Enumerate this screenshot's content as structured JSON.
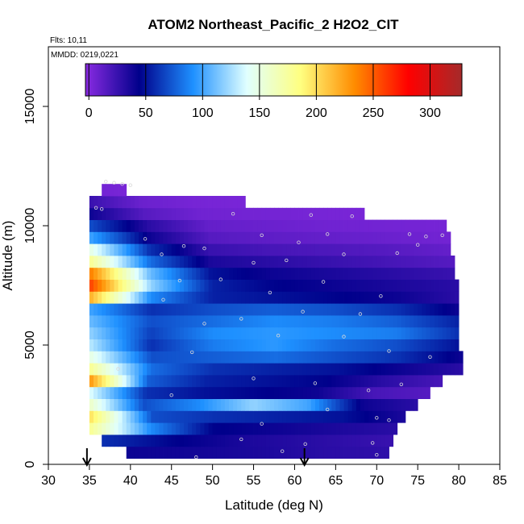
{
  "chart_data": {
    "type": "heatmap",
    "title": "ATOM2 Northeast_Pacific_2 H2O2_CIT",
    "flights_label": "Flts: 10,11",
    "mmdd_label": "MMDD: 0219,0221",
    "xlabel": "Latitude (deg N)",
    "ylabel": "Altitude (m)",
    "xlim": [
      30,
      85
    ],
    "ylim": [
      0,
      17500
    ],
    "x_ticks": [
      "30",
      "35",
      "40",
      "45",
      "50",
      "55",
      "60",
      "65",
      "70",
      "75",
      "80",
      "85"
    ],
    "y_ticks": [
      "0",
      "5000",
      "10000",
      "15000"
    ],
    "colorbar": {
      "range": [
        -3,
        328
      ],
      "ticks": [
        "0",
        "50",
        "100",
        "150",
        "200",
        "250",
        "300"
      ],
      "colors": [
        "#8a2be2",
        "#00008b",
        "#1e90ff",
        "#e0ffff",
        "#ffff80",
        "#ff8c00",
        "#ff0000",
        "#a52a2a"
      ]
    },
    "arrows_latitude": [
      34.7,
      61.2
    ],
    "altitude_bins": [
      {
        "alt": 500,
        "lat": [
          39.5,
          71.5
        ],
        "values": [
          40,
          38,
          35,
          30,
          28
        ]
      },
      {
        "alt": 1000,
        "lat": [
          36.5,
          72.0
        ],
        "values": [
          60,
          45,
          35,
          30,
          25
        ]
      },
      {
        "alt": 1500,
        "lat": [
          35.0,
          72.5
        ],
        "values": [
          180,
          90,
          45,
          40,
          35,
          30
        ]
      },
      {
        "alt": 2000,
        "lat": [
          35.0,
          73.5
        ],
        "values": [
          200,
          70,
          60,
          55,
          50,
          35
        ]
      },
      {
        "alt": 2500,
        "lat": [
          35.0,
          75.0
        ],
        "values": [
          160,
          70,
          90,
          120,
          100,
          40,
          30
        ]
      },
      {
        "alt": 3000,
        "lat": [
          35.0,
          76.5
        ],
        "values": [
          140,
          60,
          50,
          45,
          40,
          20,
          15
        ]
      },
      {
        "alt": 3500,
        "lat": [
          35.0,
          78.0
        ],
        "values": [
          230,
          75,
          55,
          50,
          45,
          30,
          20
        ]
      },
      {
        "alt": 4000,
        "lat": [
          35.0,
          80.5
        ],
        "values": [
          180,
          80,
          60,
          55,
          50,
          40,
          30
        ]
      },
      {
        "alt": 4500,
        "lat": [
          35.0,
          80.5
        ],
        "values": [
          150,
          70,
          75,
          80,
          70,
          60,
          40
        ]
      },
      {
        "alt": 5000,
        "lat": [
          35.0,
          80.0
        ],
        "values": [
          130,
          60,
          85,
          95,
          80,
          70,
          50
        ]
      },
      {
        "alt": 5500,
        "lat": [
          35.0,
          80.0
        ],
        "values": [
          120,
          65,
          90,
          95,
          90,
          85,
          60
        ]
      },
      {
        "alt": 6000,
        "lat": [
          35.0,
          80.0
        ],
        "values": [
          110,
          70,
          80,
          90,
          85,
          75,
          55
        ]
      },
      {
        "alt": 6500,
        "lat": [
          35.0,
          80.0
        ],
        "values": [
          100,
          60,
          70,
          75,
          70,
          60,
          40
        ]
      },
      {
        "alt": 7000,
        "lat": [
          35.0,
          80.0
        ],
        "values": [
          220,
          90,
          55,
          50,
          45,
          40,
          30
        ]
      },
      {
        "alt": 7500,
        "lat": [
          35.0,
          80.0
        ],
        "values": [
          260,
          120,
          55,
          45,
          40,
          35,
          30
        ]
      },
      {
        "alt": 8000,
        "lat": [
          35.0,
          79.5
        ],
        "values": [
          240,
          110,
          50,
          40,
          35,
          30,
          25
        ]
      },
      {
        "alt": 8500,
        "lat": [
          35.0,
          79.5
        ],
        "values": [
          180,
          80,
          35,
          30,
          25,
          20,
          15
        ]
      },
      {
        "alt": 9000,
        "lat": [
          35.0,
          79.0
        ],
        "values": [
          150,
          60,
          25,
          20,
          18,
          15,
          10
        ]
      },
      {
        "alt": 9500,
        "lat": [
          35.0,
          79.0
        ],
        "values": [
          100,
          40,
          15,
          12,
          10,
          8,
          5
        ]
      },
      {
        "alt": 10000,
        "lat": [
          35.0,
          78.5
        ],
        "values": [
          70,
          30,
          10,
          8,
          6,
          5,
          4
        ]
      },
      {
        "alt": 10500,
        "lat": [
          35.0,
          68.5
        ],
        "values": [
          40,
          15,
          6,
          5,
          4,
          3
        ]
      },
      {
        "alt": 11000,
        "lat": [
          35.0,
          54.0
        ],
        "values": [
          25,
          8,
          4,
          3
        ]
      },
      {
        "alt": 11500,
        "lat": [
          36.5,
          39.5
        ],
        "values": [
          5,
          3
        ]
      }
    ],
    "sample_points": [
      [
        37.0,
        11850
      ],
      [
        38.0,
        11800
      ],
      [
        39.0,
        11750
      ],
      [
        40.0,
        11700
      ],
      [
        35.8,
        10750
      ],
      [
        36.5,
        10700
      ],
      [
        52.5,
        10500
      ],
      [
        62.0,
        10450
      ],
      [
        67.0,
        10400
      ],
      [
        41.8,
        9450
      ],
      [
        56.0,
        9600
      ],
      [
        64.0,
        9650
      ],
      [
        74.0,
        9650
      ],
      [
        78.0,
        9600
      ],
      [
        46.5,
        9150
      ],
      [
        60.5,
        9300
      ],
      [
        76.0,
        9550
      ],
      [
        49.0,
        9050
      ],
      [
        75.0,
        9200
      ],
      [
        43.8,
        8800
      ],
      [
        59.0,
        8550
      ],
      [
        72.5,
        8850
      ],
      [
        66.0,
        8800
      ],
      [
        55.0,
        8450
      ],
      [
        63.5,
        7650
      ],
      [
        51.0,
        7750
      ],
      [
        46.0,
        7700
      ],
      [
        70.5,
        7050
      ],
      [
        57.0,
        7200
      ],
      [
        44.0,
        6900
      ],
      [
        61.0,
        6400
      ],
      [
        68.0,
        6300
      ],
      [
        53.5,
        6100
      ],
      [
        49.0,
        5900
      ],
      [
        66.0,
        5350
      ],
      [
        58.0,
        5400
      ],
      [
        47.5,
        4700
      ],
      [
        71.5,
        4750
      ],
      [
        76.5,
        4500
      ],
      [
        38.5,
        4000
      ],
      [
        55.0,
        3600
      ],
      [
        62.5,
        3400
      ],
      [
        69.0,
        3100
      ],
      [
        73.0,
        3350
      ],
      [
        45.0,
        2900
      ],
      [
        64.0,
        2300
      ],
      [
        70.0,
        1950
      ],
      [
        71.5,
        1850
      ],
      [
        56.0,
        1700
      ],
      [
        61.3,
        850
      ],
      [
        53.5,
        1050
      ],
      [
        69.5,
        900
      ],
      [
        58.5,
        550
      ],
      [
        48.0,
        300
      ],
      [
        70.0,
        400
      ]
    ]
  }
}
